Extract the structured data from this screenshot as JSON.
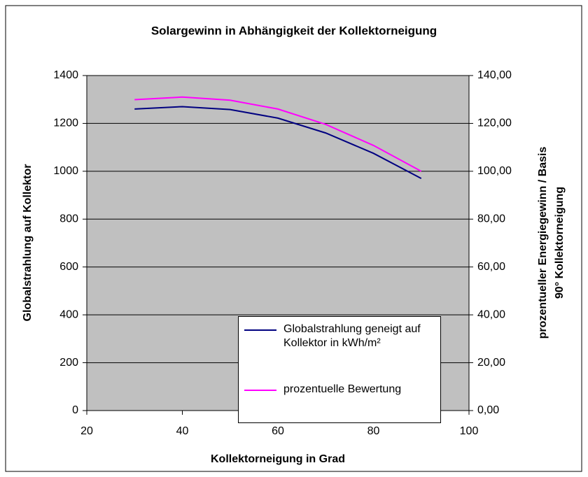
{
  "chart_data": {
    "type": "line",
    "title": "Solargewinn in Abhängigkeit der Kollektorneigung",
    "xlabel": "Kollektorneigung in Grad",
    "ylabel": "Globalstrahlung auf Kollektor",
    "y2label": [
      "prozentueller Energiegewinn / Basis",
      "90° Kollektorneigung"
    ],
    "x": [
      30,
      40,
      50,
      60,
      70,
      80,
      90
    ],
    "series": [
      {
        "name": "Globalstrahlung geneigt auf Kollektor in kWh/m²",
        "color": "#000080",
        "values": [
          1260,
          1270,
          1258,
          1222,
          1160,
          1075,
          970
        ]
      },
      {
        "name": "prozentuelle Bewertung",
        "color": "#ff00ff",
        "axis": "y2",
        "values": [
          129.9,
          131,
          129.7,
          126,
          119.6,
          110.8,
          100
        ]
      }
    ],
    "xlim": [
      20,
      100
    ],
    "xticks": [
      20,
      40,
      60,
      80,
      100
    ],
    "ylim": [
      0,
      1400
    ],
    "yticks": [
      0,
      200,
      400,
      600,
      800,
      1000,
      1200,
      1400
    ],
    "y2lim": [
      0,
      140
    ],
    "y2ticks": [
      {
        "value": 0,
        "label": "0,00"
      },
      {
        "value": 20,
        "label": "20,00"
      },
      {
        "value": 40,
        "label": "40,00"
      },
      {
        "value": 60,
        "label": "60,00"
      },
      {
        "value": 80,
        "label": "80,00"
      },
      {
        "value": 100,
        "label": "100,00"
      },
      {
        "value": 120,
        "label": "120,00"
      },
      {
        "value": 140,
        "label": "140,00"
      }
    ],
    "grid": true,
    "plot_color": "#c0c0c0"
  }
}
